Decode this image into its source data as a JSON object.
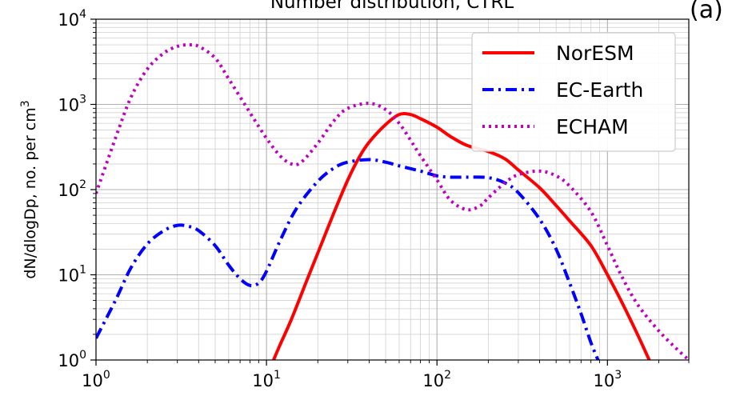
{
  "chart_data": {
    "type": "line",
    "title": "Number distribution, CTRL",
    "panel_label": "(a)",
    "ylabel": "dN/dlogDp, no. per cm",
    "ylabel_sup": "3",
    "xlabel": "",
    "x_scale": "log",
    "y_scale": "log",
    "xlim": [
      1,
      3000
    ],
    "ylim": [
      1,
      10000
    ],
    "grid": true,
    "legend_position": "top-right",
    "x_ticks": [
      {
        "base": "10",
        "exp": "0",
        "value": 1
      },
      {
        "base": "10",
        "exp": "1",
        "value": 10
      },
      {
        "base": "10",
        "exp": "2",
        "value": 100
      },
      {
        "base": "10",
        "exp": "3",
        "value": 1000
      }
    ],
    "y_ticks": [
      {
        "base": "10",
        "exp": "0",
        "value": 1
      },
      {
        "base": "10",
        "exp": "1",
        "value": 10
      },
      {
        "base": "10",
        "exp": "2",
        "value": 100
      },
      {
        "base": "10",
        "exp": "3",
        "value": 1000
      },
      {
        "base": "10",
        "exp": "4",
        "value": 10000
      }
    ],
    "series": [
      {
        "name": "NorESM",
        "color": "#ff0000",
        "style": "solid",
        "x": [
          11,
          12,
          14,
          17,
          20,
          25,
          30,
          35,
          40,
          50,
          60,
          70,
          80,
          100,
          120,
          150,
          200,
          250,
          300,
          400,
          500,
          600,
          800,
          1000,
          1200,
          1500,
          1800
        ],
        "y": [
          1,
          1.5,
          3,
          8,
          18,
          55,
          130,
          240,
          360,
          580,
          760,
          760,
          680,
          540,
          420,
          330,
          280,
          230,
          170,
          105,
          65,
          43,
          22,
          10,
          5,
          2,
          0.9
        ]
      },
      {
        "name": "EC-Earth",
        "color": "#0000ff",
        "style": "dashdot",
        "x": [
          1,
          1.3,
          1.6,
          2,
          2.5,
          3,
          3.5,
          4,
          5,
          6,
          7,
          8,
          9,
          10,
          12,
          15,
          20,
          25,
          30,
          40,
          50,
          60,
          80,
          100,
          120,
          150,
          200,
          250,
          300,
          400,
          500,
          600,
          700,
          800,
          900
        ],
        "y": [
          1.8,
          5,
          12,
          23,
          33,
          38,
          37,
          33,
          22,
          13,
          9,
          7.5,
          8,
          11,
          25,
          60,
          125,
          180,
          210,
          225,
          210,
          190,
          165,
          145,
          140,
          140,
          138,
          120,
          92,
          45,
          20,
          8,
          3.5,
          1.6,
          0.9
        ]
      },
      {
        "name": "ECHAM",
        "color": "#bf00bf",
        "style": "dotted",
        "x": [
          1,
          1.3,
          1.6,
          2,
          2.5,
          3,
          3.5,
          4,
          5,
          6,
          8,
          10,
          12,
          14,
          16,
          20,
          25,
          30,
          40,
          50,
          60,
          70,
          80,
          100,
          120,
          150,
          180,
          200,
          250,
          300,
          400,
          500,
          600,
          800,
          1000,
          1200,
          1500,
          2000,
          2500,
          3000
        ],
        "y": [
          90,
          400,
          1200,
          2600,
          4000,
          4800,
          5000,
          4800,
          3500,
          2000,
          800,
          400,
          250,
          200,
          210,
          350,
          650,
          900,
          1030,
          870,
          600,
          380,
          250,
          130,
          75,
          58,
          65,
          80,
          120,
          150,
          165,
          145,
          110,
          55,
          22,
          10,
          4.5,
          2.2,
          1.4,
          1
        ]
      }
    ]
  }
}
